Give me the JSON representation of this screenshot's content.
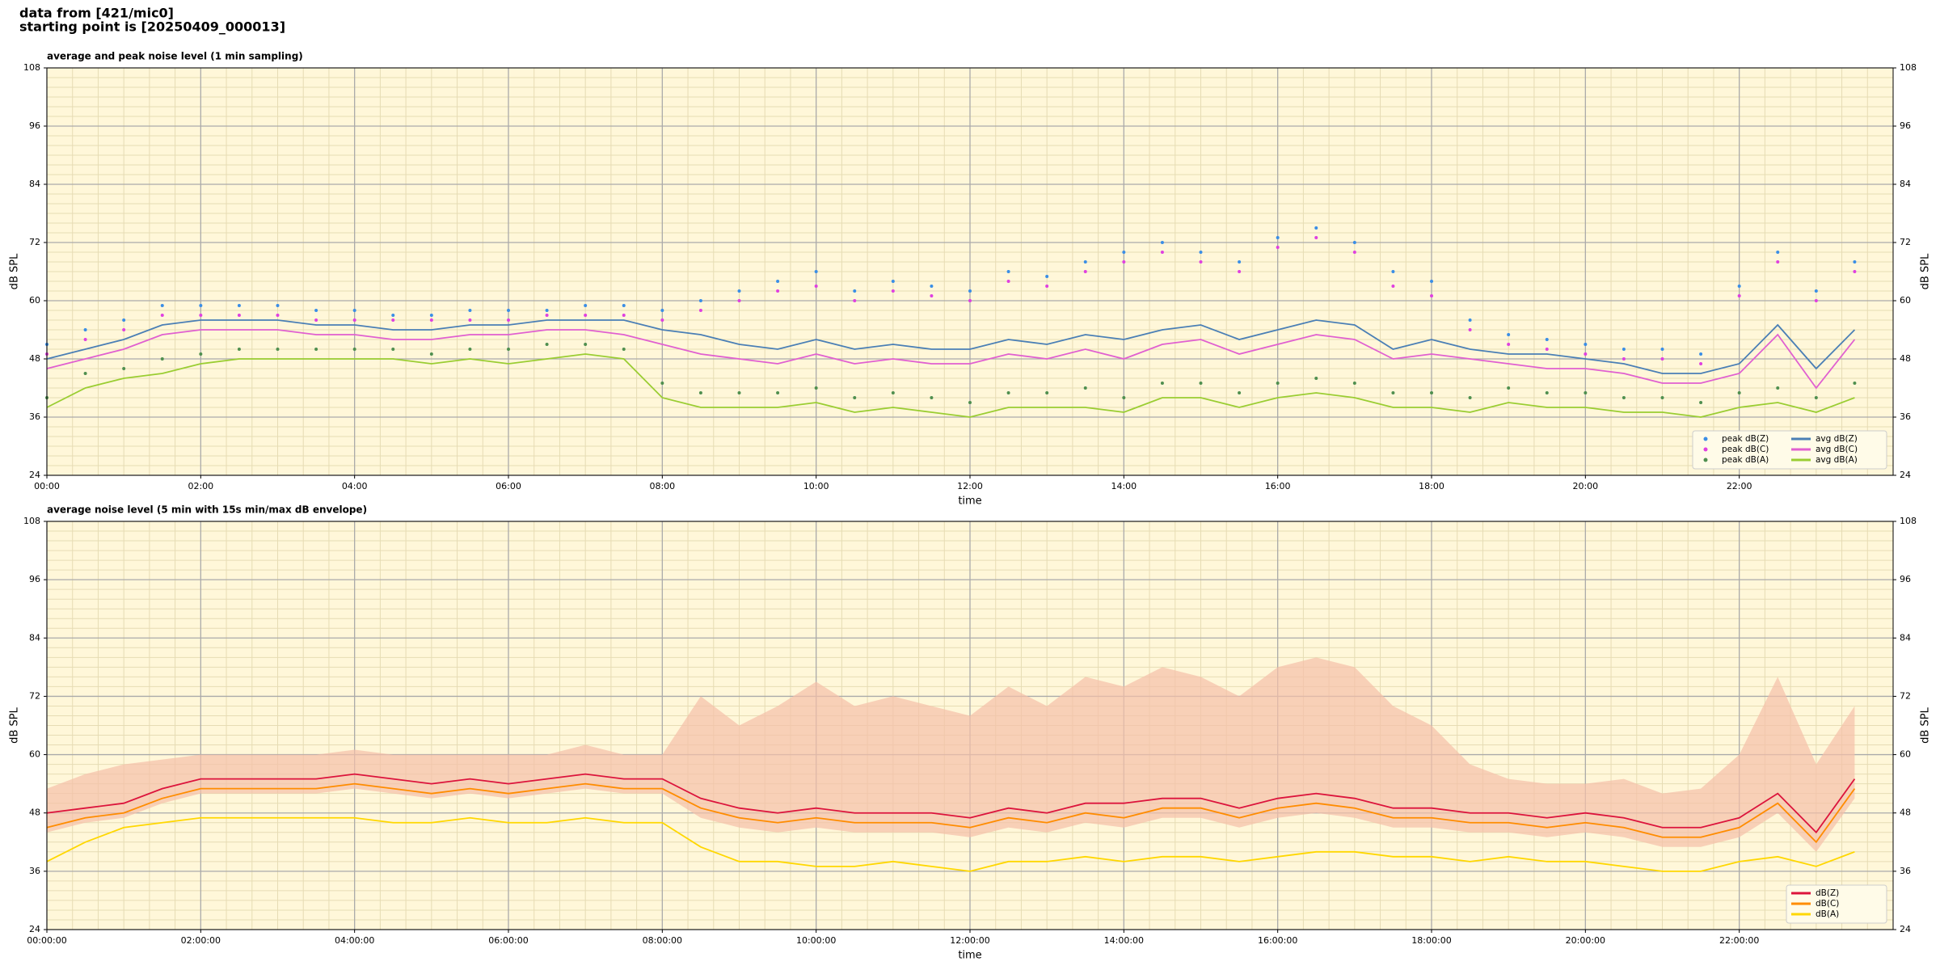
{
  "header": {
    "line1": "data from [421/mic0]",
    "line2": "starting point is [20250409_000013]"
  },
  "chart_data": [
    {
      "type": "line",
      "title": "average and peak noise level (1 min sampling)",
      "xlabel": "time",
      "ylabel": "dB SPL",
      "y2label": "dB SPL",
      "legend": "lower right",
      "legend_columns": 2,
      "grid": true,
      "minor_grid": true,
      "background": "#fff7d9",
      "xlim": [
        0,
        24
      ],
      "xticks": [
        {
          "value": 0,
          "label": "00:00"
        },
        {
          "value": 2,
          "label": "02:00"
        },
        {
          "value": 4,
          "label": "04:00"
        },
        {
          "value": 6,
          "label": "06:00"
        },
        {
          "value": 8,
          "label": "08:00"
        },
        {
          "value": 10,
          "label": "10:00"
        },
        {
          "value": 12,
          "label": "12:00"
        },
        {
          "value": 14,
          "label": "14:00"
        },
        {
          "value": 16,
          "label": "16:00"
        },
        {
          "value": 18,
          "label": "18:00"
        },
        {
          "value": 20,
          "label": "20:00"
        },
        {
          "value": 22,
          "label": "22:00"
        }
      ],
      "ylim": [
        24,
        108
      ],
      "yticks": [
        24,
        36,
        48,
        60,
        72,
        84,
        96,
        108
      ],
      "y2lim": [
        24,
        108
      ],
      "y2ticks": [
        24,
        36,
        48,
        60,
        72,
        84,
        96,
        108
      ],
      "x": [
        0,
        0.5,
        1,
        1.5,
        2,
        2.5,
        3,
        3.5,
        4,
        4.5,
        5,
        5.5,
        6,
        6.5,
        7,
        7.5,
        8,
        8.5,
        9,
        9.5,
        10,
        10.5,
        11,
        11.5,
        12,
        12.5,
        13,
        13.5,
        14,
        14.5,
        15,
        15.5,
        16,
        16.5,
        17,
        17.5,
        18,
        18.5,
        19,
        19.5,
        20,
        20.5,
        21,
        21.5,
        22,
        22.5,
        23,
        23.5
      ],
      "series": [
        {
          "name": "peak dB(Z)",
          "kind": "scatter",
          "color": "#3a8ee6",
          "values": [
            51,
            54,
            56,
            59,
            59,
            59,
            59,
            58,
            58,
            57,
            57,
            58,
            58,
            58,
            59,
            59,
            58,
            60,
            62,
            64,
            66,
            62,
            64,
            63,
            62,
            66,
            65,
            68,
            70,
            72,
            70,
            68,
            73,
            75,
            72,
            66,
            64,
            56,
            53,
            52,
            51,
            50,
            50,
            49,
            63,
            70,
            62,
            68
          ]
        },
        {
          "name": "peak dB(C)",
          "kind": "scatter",
          "color": "#e040e0",
          "values": [
            49,
            52,
            54,
            57,
            57,
            57,
            57,
            56,
            56,
            56,
            56,
            56,
            56,
            57,
            57,
            57,
            56,
            58,
            60,
            62,
            63,
            60,
            62,
            61,
            60,
            64,
            63,
            66,
            68,
            70,
            68,
            66,
            71,
            73,
            70,
            63,
            61,
            54,
            51,
            50,
            49,
            48,
            48,
            47,
            61,
            68,
            60,
            66
          ]
        },
        {
          "name": "peak dB(A)",
          "kind": "scatter",
          "color": "#4f8f4f",
          "values": [
            40,
            45,
            46,
            48,
            49,
            50,
            50,
            50,
            50,
            50,
            49,
            50,
            50,
            51,
            51,
            50,
            43,
            41,
            41,
            41,
            42,
            40,
            41,
            40,
            39,
            41,
            41,
            42,
            40,
            43,
            43,
            41,
            43,
            44,
            43,
            41,
            41,
            40,
            42,
            41,
            41,
            40,
            40,
            39,
            41,
            42,
            40,
            43
          ]
        },
        {
          "name": "avg dB(Z)",
          "kind": "line",
          "color": "#4a7fb5",
          "values": [
            48,
            50,
            52,
            55,
            56,
            56,
            56,
            55,
            55,
            54,
            54,
            55,
            55,
            56,
            56,
            56,
            54,
            53,
            51,
            50,
            52,
            50,
            51,
            50,
            50,
            52,
            51,
            53,
            52,
            54,
            55,
            52,
            54,
            56,
            55,
            50,
            52,
            50,
            49,
            49,
            48,
            47,
            45,
            45,
            47,
            55,
            46,
            54
          ]
        },
        {
          "name": "avg dB(C)",
          "kind": "line",
          "color": "#e060d0",
          "values": [
            46,
            48,
            50,
            53,
            54,
            54,
            54,
            53,
            53,
            52,
            52,
            53,
            53,
            54,
            54,
            53,
            51,
            49,
            48,
            47,
            49,
            47,
            48,
            47,
            47,
            49,
            48,
            50,
            48,
            51,
            52,
            49,
            51,
            53,
            52,
            48,
            49,
            48,
            47,
            46,
            46,
            45,
            43,
            43,
            45,
            53,
            42,
            52
          ]
        },
        {
          "name": "avg dB(A)",
          "kind": "line",
          "color": "#9acd32",
          "values": [
            38,
            42,
            44,
            45,
            47,
            48,
            48,
            48,
            48,
            48,
            47,
            48,
            47,
            48,
            49,
            48,
            40,
            38,
            38,
            38,
            39,
            37,
            38,
            37,
            36,
            38,
            38,
            38,
            37,
            40,
            40,
            38,
            40,
            41,
            40,
            38,
            38,
            37,
            39,
            38,
            38,
            37,
            37,
            36,
            38,
            39,
            37,
            40
          ]
        }
      ]
    },
    {
      "type": "line",
      "title": "average noise level (5 min with 15s min/max dB envelope)",
      "xlabel": "time",
      "ylabel": "dB SPL",
      "y2label": "dB SPL",
      "legend": "lower right",
      "legend_columns": 1,
      "grid": true,
      "minor_grid": true,
      "background": "#fff7d9",
      "xlim": [
        0,
        24
      ],
      "xticks": [
        {
          "value": 0,
          "label": "00:00:00"
        },
        {
          "value": 2,
          "label": "02:00:00"
        },
        {
          "value": 4,
          "label": "04:00:00"
        },
        {
          "value": 6,
          "label": "06:00:00"
        },
        {
          "value": 8,
          "label": "08:00:00"
        },
        {
          "value": 10,
          "label": "10:00:00"
        },
        {
          "value": 12,
          "label": "12:00:00"
        },
        {
          "value": 14,
          "label": "14:00:00"
        },
        {
          "value": 16,
          "label": "16:00:00"
        },
        {
          "value": 18,
          "label": "18:00:00"
        },
        {
          "value": 20,
          "label": "20:00:00"
        },
        {
          "value": 22,
          "label": "22:00:00"
        }
      ],
      "ylim": [
        24,
        108
      ],
      "yticks": [
        24,
        36,
        48,
        60,
        72,
        84,
        96,
        108
      ],
      "y2lim": [
        24,
        108
      ],
      "y2ticks": [
        24,
        36,
        48,
        60,
        72,
        84,
        96,
        108
      ],
      "x": [
        0,
        0.5,
        1,
        1.5,
        2,
        2.5,
        3,
        3.5,
        4,
        4.5,
        5,
        5.5,
        6,
        6.5,
        7,
        7.5,
        8,
        8.5,
        9,
        9.5,
        10,
        10.5,
        11,
        11.5,
        12,
        12.5,
        13,
        13.5,
        14,
        14.5,
        15,
        15.5,
        16,
        16.5,
        17,
        17.5,
        18,
        18.5,
        19,
        19.5,
        20,
        20.5,
        21,
        21.5,
        22,
        22.5,
        23,
        23.5
      ],
      "envelope": {
        "color": "#f5bfa8",
        "max": [
          53,
          56,
          58,
          59,
          60,
          60,
          60,
          60,
          61,
          60,
          60,
          60,
          60,
          60,
          62,
          60,
          60,
          72,
          66,
          70,
          75,
          70,
          72,
          70,
          68,
          74,
          70,
          76,
          74,
          78,
          76,
          72,
          78,
          80,
          78,
          70,
          66,
          58,
          55,
          54,
          54,
          55,
          52,
          53,
          60,
          76,
          58,
          70
        ],
        "min": [
          44,
          46,
          47,
          50,
          52,
          52,
          52,
          52,
          53,
          52,
          51,
          52,
          51,
          52,
          53,
          52,
          52,
          47,
          45,
          44,
          45,
          44,
          44,
          44,
          43,
          45,
          44,
          46,
          45,
          47,
          47,
          45,
          47,
          48,
          47,
          45,
          45,
          44,
          44,
          43,
          44,
          43,
          41,
          41,
          43,
          48,
          40,
          51
        ]
      },
      "series": [
        {
          "name": "dB(Z)",
          "kind": "line",
          "color": "#dc143c",
          "values": [
            48,
            49,
            50,
            53,
            55,
            55,
            55,
            55,
            56,
            55,
            54,
            55,
            54,
            55,
            56,
            55,
            55,
            51,
            49,
            48,
            49,
            48,
            48,
            48,
            47,
            49,
            48,
            50,
            50,
            51,
            51,
            49,
            51,
            52,
            51,
            49,
            49,
            48,
            48,
            47,
            48,
            47,
            45,
            45,
            47,
            52,
            44,
            55
          ]
        },
        {
          "name": "dB(C)",
          "kind": "line",
          "color": "#ff8c00",
          "values": [
            45,
            47,
            48,
            51,
            53,
            53,
            53,
            53,
            54,
            53,
            52,
            53,
            52,
            53,
            54,
            53,
            53,
            49,
            47,
            46,
            47,
            46,
            46,
            46,
            45,
            47,
            46,
            48,
            47,
            49,
            49,
            47,
            49,
            50,
            49,
            47,
            47,
            46,
            46,
            45,
            46,
            45,
            43,
            43,
            45,
            50,
            42,
            53
          ]
        },
        {
          "name": "dB(A)",
          "kind": "line",
          "color": "#ffd700",
          "values": [
            38,
            42,
            45,
            46,
            47,
            47,
            47,
            47,
            47,
            46,
            46,
            47,
            46,
            46,
            47,
            46,
            46,
            41,
            38,
            38,
            37,
            37,
            38,
            37,
            36,
            38,
            38,
            39,
            38,
            39,
            39,
            38,
            39,
            40,
            40,
            39,
            39,
            38,
            39,
            38,
            38,
            37,
            36,
            36,
            38,
            39,
            37,
            40
          ]
        }
      ]
    }
  ]
}
